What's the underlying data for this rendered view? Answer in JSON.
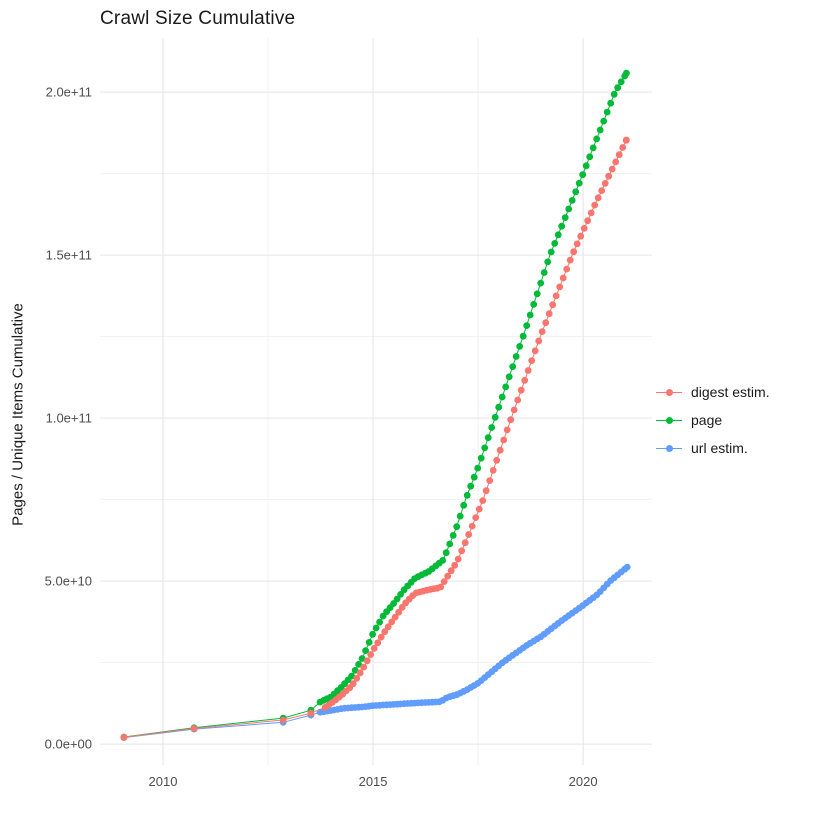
{
  "chart_data": {
    "type": "scatter",
    "title": "Crawl Size Cumulative",
    "xlabel": "",
    "ylabel": "Pages / Unique Items Cumulative",
    "value_unit": "1e9 (billions, cumulative pages / unique items)",
    "grid": true,
    "legend_position": "right",
    "x_domain": [
      2008.5,
      2021.64
    ],
    "y_domain_e9": [
      -6.4,
      216.6
    ],
    "x_breaks": [
      {
        "value": 2010,
        "label": "2010"
      },
      {
        "value": 2015,
        "label": "2015"
      },
      {
        "value": 2020,
        "label": "2020"
      }
    ],
    "x_minor_breaks": [
      2012.5,
      2017.5
    ],
    "y_breaks": [
      {
        "value_e9": 0,
        "label": "0.0e+00"
      },
      {
        "value_e9": 50,
        "label": "5.0e+10"
      },
      {
        "value_e9": 100,
        "label": "1.0e+11"
      },
      {
        "value_e9": 150,
        "label": "1.5e+11"
      },
      {
        "value_e9": 200,
        "label": "2.0e+11"
      }
    ],
    "y_minor_breaks_e9": [
      25,
      75,
      125,
      175
    ],
    "series": [
      {
        "name": "digest estim.",
        "color": "#F8766D",
        "draw_order": 3,
        "sparse_points": [
          [
            2009.07,
            2.1
          ],
          [
            2010.74,
            4.8
          ],
          [
            2012.86,
            7.4
          ],
          [
            2013.52,
            9.5
          ]
        ],
        "trend_points": [
          [
            2013.86,
            11.3
          ],
          [
            2014.0,
            12.5
          ],
          [
            2014.25,
            15
          ],
          [
            2014.5,
            18
          ],
          [
            2014.75,
            23
          ],
          [
            2015.0,
            28.8
          ],
          [
            2015.25,
            34
          ],
          [
            2015.5,
            38.5
          ],
          [
            2015.75,
            43
          ],
          [
            2016.0,
            46.3
          ],
          [
            2016.3,
            47.3
          ],
          [
            2016.6,
            48
          ],
          [
            2017.0,
            56
          ],
          [
            2017.3,
            65
          ],
          [
            2017.62,
            75
          ],
          [
            2018.29,
            100
          ],
          [
            2018.98,
            125
          ],
          [
            2019.74,
            150
          ],
          [
            2020.3,
            166
          ],
          [
            2021.03,
            185.3
          ]
        ]
      },
      {
        "name": "page",
        "color": "#00BA38",
        "draw_order": 2,
        "sparse_points": [
          [
            2009.07,
            2.2
          ],
          [
            2010.74,
            5.0
          ],
          [
            2012.86,
            8.0
          ],
          [
            2013.52,
            10.4
          ]
        ],
        "trend_points": [
          [
            2013.74,
            12.9
          ],
          [
            2014.0,
            14.5
          ],
          [
            2014.25,
            17.5
          ],
          [
            2014.5,
            21
          ],
          [
            2014.75,
            26.5
          ],
          [
            2015.0,
            34
          ],
          [
            2015.25,
            39.5
          ],
          [
            2015.5,
            43.3
          ],
          [
            2015.75,
            47.5
          ],
          [
            2016.0,
            50.9
          ],
          [
            2016.33,
            53
          ],
          [
            2016.67,
            56.5
          ],
          [
            2017.0,
            67
          ],
          [
            2017.2,
            75
          ],
          [
            2017.5,
            85
          ],
          [
            2017.9,
            100
          ],
          [
            2018.57,
            125
          ],
          [
            2019.21,
            150
          ],
          [
            2020.0,
            175
          ],
          [
            2020.76,
            200
          ],
          [
            2021.03,
            205.8
          ]
        ]
      },
      {
        "name": "url estim.",
        "color": "#619CFF",
        "draw_order": 1,
        "sparse_points": [
          [
            2009.07,
            2.0
          ],
          [
            2010.74,
            4.6
          ],
          [
            2012.86,
            6.7
          ],
          [
            2013.52,
            8.9
          ]
        ],
        "trend_points": [
          [
            2013.74,
            9.8
          ],
          [
            2014.0,
            10.3
          ],
          [
            2014.3,
            11.0
          ],
          [
            2014.75,
            11.4
          ],
          [
            2015.0,
            11.8
          ],
          [
            2015.5,
            12.2
          ],
          [
            2016.0,
            12.6
          ],
          [
            2016.6,
            13.0
          ],
          [
            2016.76,
            14.3
          ],
          [
            2017.0,
            15.2
          ],
          [
            2017.25,
            16.8
          ],
          [
            2017.5,
            18.7
          ],
          [
            2018.1,
            25.2
          ],
          [
            2018.67,
            30.4
          ],
          [
            2019.0,
            33
          ],
          [
            2019.5,
            38
          ],
          [
            2020.0,
            42.6
          ],
          [
            2020.35,
            46
          ],
          [
            2020.64,
            50
          ],
          [
            2021.05,
            54.3
          ]
        ]
      }
    ]
  }
}
